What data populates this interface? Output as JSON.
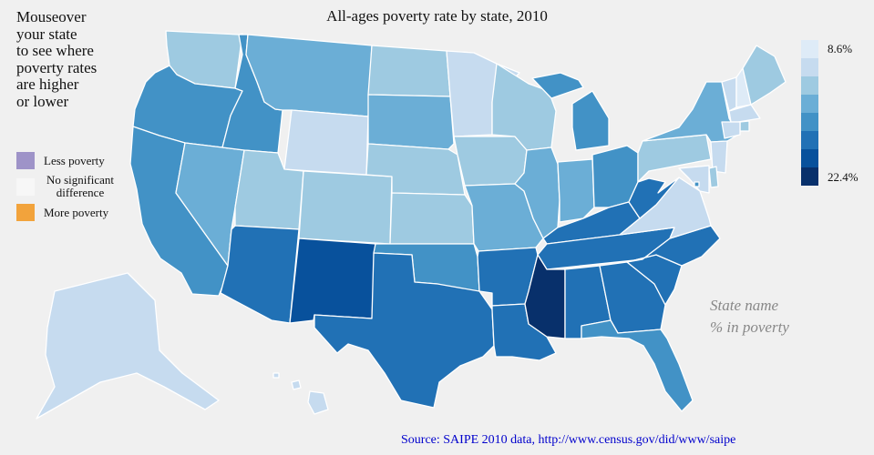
{
  "title": "All-ages poverty rate by state, 2010",
  "instructions": [
    "Mouseover",
    "your state",
    "to see where",
    "poverty rates",
    "are higher",
    "or lower"
  ],
  "key": {
    "less": {
      "label": "Less poverty",
      "color": "#9e93c8"
    },
    "none": {
      "label": "No significant difference",
      "color": "#f7f7f7"
    },
    "more": {
      "label": "More poverty",
      "color": "#f2a33c"
    }
  },
  "color_scale": {
    "min_label": "8.6%",
    "max_label": "22.4%",
    "min_value": 8.6,
    "max_value": 22.4,
    "colors": [
      "#deebf7",
      "#c6dbef",
      "#9ecae1",
      "#6baed6",
      "#4292c6",
      "#2171b5",
      "#08519c",
      "#08306b"
    ]
  },
  "placeholder": {
    "line1": "State name",
    "line2": "% in poverty"
  },
  "source": "Source: SAIPE 2010 data, http://www.census.gov/did/www/saipe",
  "map_data": {
    "type": "choropleth",
    "measure": "poverty rate (%)",
    "states": [
      {
        "id": "WA",
        "bin": 2
      },
      {
        "id": "OR",
        "bin": 4
      },
      {
        "id": "CA",
        "bin": 4
      },
      {
        "id": "NV",
        "bin": 3
      },
      {
        "id": "ID",
        "bin": 4
      },
      {
        "id": "MT",
        "bin": 3
      },
      {
        "id": "WY",
        "bin": 1
      },
      {
        "id": "UT",
        "bin": 2
      },
      {
        "id": "AZ",
        "bin": 5
      },
      {
        "id": "CO",
        "bin": 2
      },
      {
        "id": "NM",
        "bin": 6
      },
      {
        "id": "ND",
        "bin": 2
      },
      {
        "id": "SD",
        "bin": 3
      },
      {
        "id": "NE",
        "bin": 2
      },
      {
        "id": "KS",
        "bin": 2
      },
      {
        "id": "OK",
        "bin": 4
      },
      {
        "id": "TX",
        "bin": 5
      },
      {
        "id": "MN",
        "bin": 1
      },
      {
        "id": "IA",
        "bin": 2
      },
      {
        "id": "MO",
        "bin": 3
      },
      {
        "id": "AR",
        "bin": 5
      },
      {
        "id": "LA",
        "bin": 5
      },
      {
        "id": "WI",
        "bin": 2
      },
      {
        "id": "IL",
        "bin": 3
      },
      {
        "id": "MI",
        "bin": 4
      },
      {
        "id": "IN",
        "bin": 3
      },
      {
        "id": "OH",
        "bin": 4
      },
      {
        "id": "KY",
        "bin": 5
      },
      {
        "id": "TN",
        "bin": 5
      },
      {
        "id": "MS",
        "bin": 7
      },
      {
        "id": "AL",
        "bin": 5
      },
      {
        "id": "GA",
        "bin": 5
      },
      {
        "id": "FL",
        "bin": 4
      },
      {
        "id": "SC",
        "bin": 5
      },
      {
        "id": "NC",
        "bin": 5
      },
      {
        "id": "VA",
        "bin": 1
      },
      {
        "id": "WV",
        "bin": 5
      },
      {
        "id": "PA",
        "bin": 2
      },
      {
        "id": "NY",
        "bin": 3
      },
      {
        "id": "VT",
        "bin": 1
      },
      {
        "id": "NH",
        "bin": 0
      },
      {
        "id": "ME",
        "bin": 2
      },
      {
        "id": "MA",
        "bin": 1
      },
      {
        "id": "RI",
        "bin": 2
      },
      {
        "id": "CT",
        "bin": 1
      },
      {
        "id": "NJ",
        "bin": 1
      },
      {
        "id": "DE",
        "bin": 2
      },
      {
        "id": "MD",
        "bin": 1
      },
      {
        "id": "DC",
        "bin": 4
      },
      {
        "id": "AK",
        "bin": 1
      },
      {
        "id": "HI",
        "bin": 1
      }
    ]
  }
}
